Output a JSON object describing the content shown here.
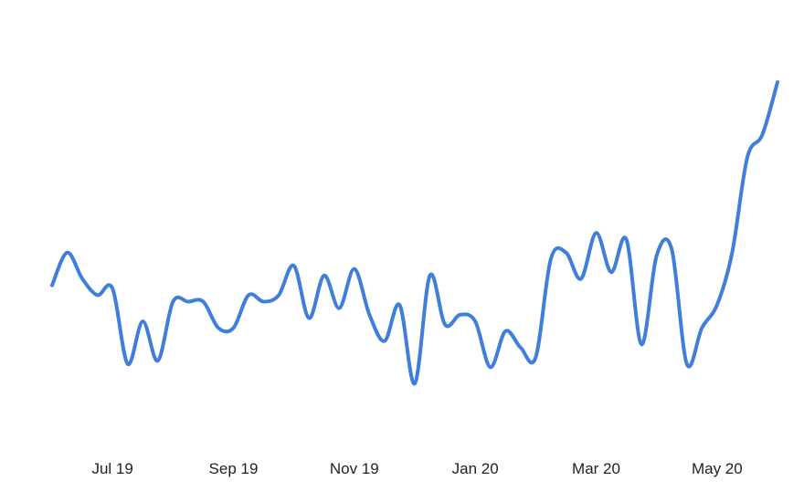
{
  "chart_data": {
    "type": "line",
    "title": "",
    "xlabel": "",
    "ylabel": "",
    "grid": false,
    "legend": "none",
    "line_color": "#3f7fdb",
    "x_tick_labels": [
      "Jul 19",
      "Sep 19",
      "Nov 19",
      "Jan 20",
      "Mar 20",
      "May 20"
    ],
    "x_tick_indices": [
      4,
      12,
      20,
      28,
      36,
      44
    ],
    "xlim": [
      0,
      48
    ],
    "ylim": [
      0,
      100
    ],
    "series": [
      {
        "values": [
          38,
          48,
          40,
          35,
          37,
          14,
          27,
          15,
          33,
          33,
          33,
          25,
          25,
          35,
          33,
          35,
          44,
          28,
          41,
          31,
          43,
          29,
          21,
          32,
          8,
          41,
          26,
          29,
          27,
          13,
          24,
          19,
          16,
          46,
          48,
          40,
          54,
          42,
          52,
          20,
          47,
          49,
          14,
          25,
          32,
          48,
          77,
          84,
          100
        ]
      }
    ]
  }
}
